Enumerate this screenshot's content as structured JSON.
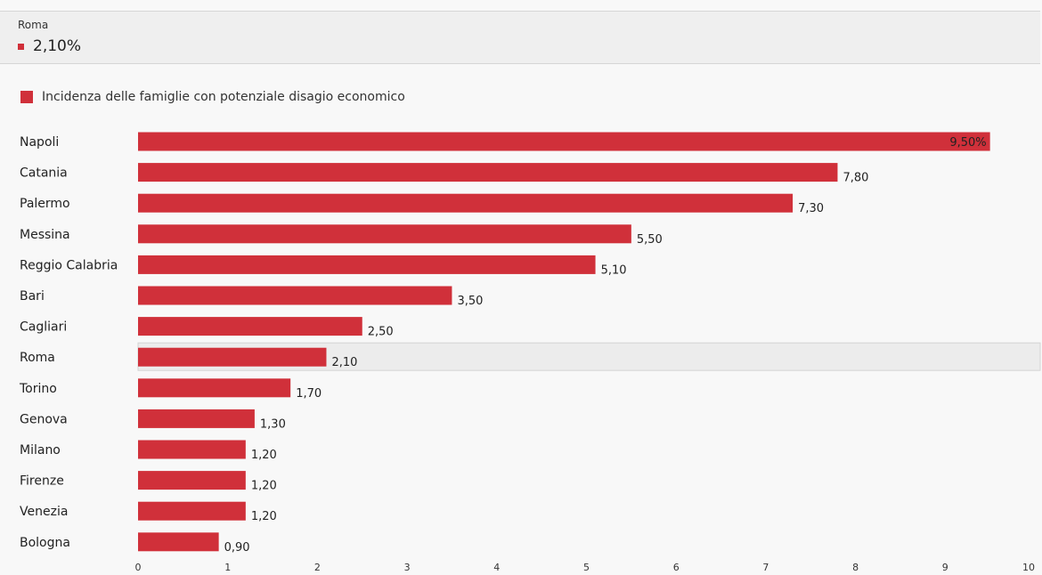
{
  "tooltip": {
    "category": "Roma",
    "value": "2,10%"
  },
  "colors": {
    "bar": "#d0303a",
    "highlight_band": "#ececec",
    "tooltip_bg": "#efefef"
  },
  "chart_data": {
    "type": "bar",
    "orientation": "horizontal",
    "legend": "Incidenza delle famiglie con potenziale disagio economico",
    "legend_position": "top-left",
    "categories": [
      "Napoli",
      "Catania",
      "Palermo",
      "Messina",
      "Reggio Calabria",
      "Bari",
      "Cagliari",
      "Roma",
      "Torino",
      "Genova",
      "Milano",
      "Firenze",
      "Venezia",
      "Bologna"
    ],
    "values": [
      9.5,
      7.8,
      7.3,
      5.5,
      5.1,
      3.5,
      2.5,
      2.1,
      1.7,
      1.3,
      1.2,
      1.2,
      1.2,
      0.9
    ],
    "value_labels": [
      "9,50%",
      "7,80",
      "7,30",
      "5,50",
      "5,10",
      "3,50",
      "2,50",
      "2,10",
      "1,70",
      "1,30",
      "1,20",
      "1,20",
      "1,20",
      "0,90"
    ],
    "highlighted_category": "Roma",
    "xlim": [
      0,
      10
    ],
    "x_ticks": [
      0,
      1,
      2,
      3,
      4,
      5,
      6,
      7,
      8,
      9,
      10
    ],
    "grid": false
  }
}
